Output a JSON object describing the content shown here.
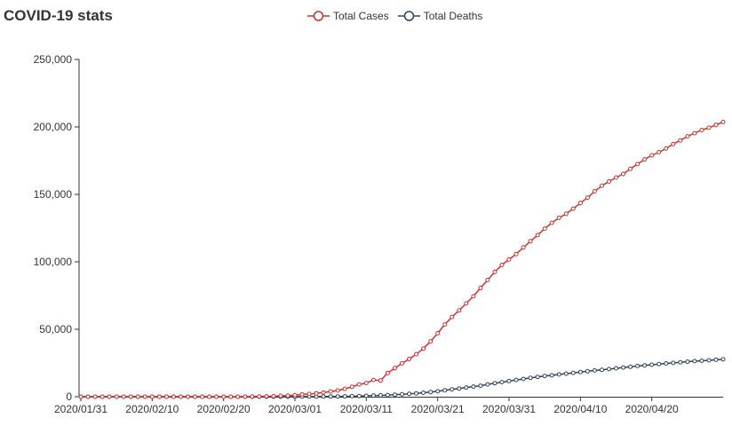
{
  "title": "COVID-19 stats",
  "colors": {
    "cases": "#c23531",
    "deaths": "#2f4554",
    "axis": "#333333"
  },
  "chart_data": {
    "type": "line",
    "title": "COVID-19 stats",
    "x_start": "2020/01/31",
    "x_end": "2020/04/29",
    "x_ticks": [
      "2020/01/31",
      "2020/02/10",
      "2020/02/20",
      "2020/03/01",
      "2020/03/11",
      "2020/03/21",
      "2020/03/31",
      "2020/04/10",
      "2020/04/20"
    ],
    "ylim": [
      0,
      250000
    ],
    "y_ticks": [
      "250,000",
      "200,000",
      "150,000",
      "100,000",
      "50,000",
      "0"
    ],
    "y_tick_values": [
      250000,
      200000,
      150000,
      100000,
      50000,
      0
    ],
    "legend_position": "top-center",
    "grid": false,
    "series": [
      {
        "name": "Total Cases",
        "color": "#c23531",
        "values": [
          2,
          2,
          2,
          2,
          2,
          2,
          2,
          2,
          2,
          2,
          3,
          3,
          3,
          3,
          3,
          3,
          3,
          3,
          3,
          3,
          3,
          3,
          20,
          79,
          150,
          220,
          322,
          400,
          650,
          888,
          1128,
          1694,
          2036,
          2502,
          3089,
          3858,
          4636,
          5883,
          7375,
          9172,
          10149,
          12462,
          12000,
          17660,
          21157,
          24747,
          27980,
          31506,
          35713,
          41035,
          47021,
          53578,
          59138,
          63927,
          69176,
          74386,
          80589,
          86498,
          92472,
          97689,
          101739,
          105792,
          110574,
          115242,
          119827,
          124632,
          128948,
          132547,
          135586,
          139422,
          143626,
          147577,
          152271,
          156363,
          159516,
          162488,
          165155,
          168941,
          172434,
          175925,
          178972,
          181228,
          183957,
          187327,
          189973,
          192994,
          195351,
          197675,
          199414,
          201505,
          203591
        ]
      },
      {
        "name": "Total Deaths",
        "color": "#2f4554",
        "values": [
          0,
          0,
          0,
          0,
          0,
          0,
          0,
          0,
          0,
          0,
          0,
          0,
          0,
          0,
          0,
          0,
          0,
          0,
          0,
          0,
          0,
          0,
          0,
          2,
          3,
          7,
          10,
          12,
          17,
          21,
          29,
          34,
          52,
          79,
          107,
          148,
          197,
          233,
          366,
          463,
          631,
          827,
          1016,
          1266,
          1441,
          1809,
          2158,
          2503,
          2978,
          3405,
          4032,
          4825,
          5476,
          6077,
          6820,
          7503,
          8165,
          9134,
          10023,
          10779,
          11591,
          12428,
          13155,
          13915,
          14681,
          15362,
          15887,
          16523,
          17127,
          17669,
          18279,
          18849,
          19468,
          19899,
          20465,
          21067,
          21645,
          22170,
          22745,
          23227,
          23660,
          24114,
          24648,
          25085,
          25549,
          25969,
          26384,
          26644,
          26977,
          27359,
          27682
        ]
      }
    ]
  }
}
